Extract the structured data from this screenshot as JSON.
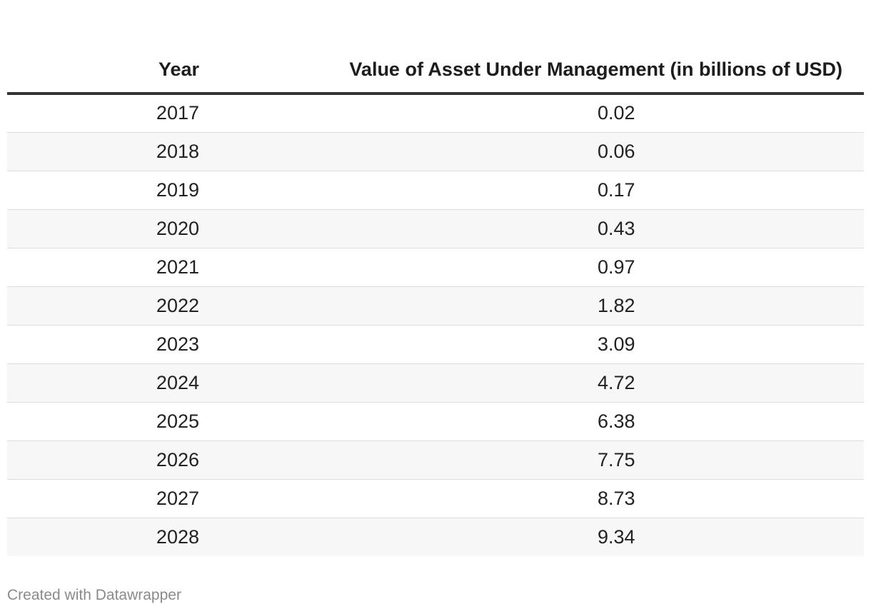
{
  "chart_data": {
    "type": "table",
    "columns": [
      "Year",
      "Value of Asset Under Management (in billions of USD)"
    ],
    "rows": [
      {
        "year": "2017",
        "value": "0.02"
      },
      {
        "year": "2018",
        "value": "0.06"
      },
      {
        "year": "2019",
        "value": "0.17"
      },
      {
        "year": "2020",
        "value": "0.43"
      },
      {
        "year": "2021",
        "value": "0.97"
      },
      {
        "year": "2022",
        "value": "1.82"
      },
      {
        "year": "2023",
        "value": "3.09"
      },
      {
        "year": "2024",
        "value": "4.72"
      },
      {
        "year": "2025",
        "value": "6.38"
      },
      {
        "year": "2026",
        "value": "7.75"
      },
      {
        "year": "2027",
        "value": "8.73"
      },
      {
        "year": "2028",
        "value": "9.34"
      }
    ]
  },
  "footer": {
    "credit": "Created with Datawrapper"
  }
}
